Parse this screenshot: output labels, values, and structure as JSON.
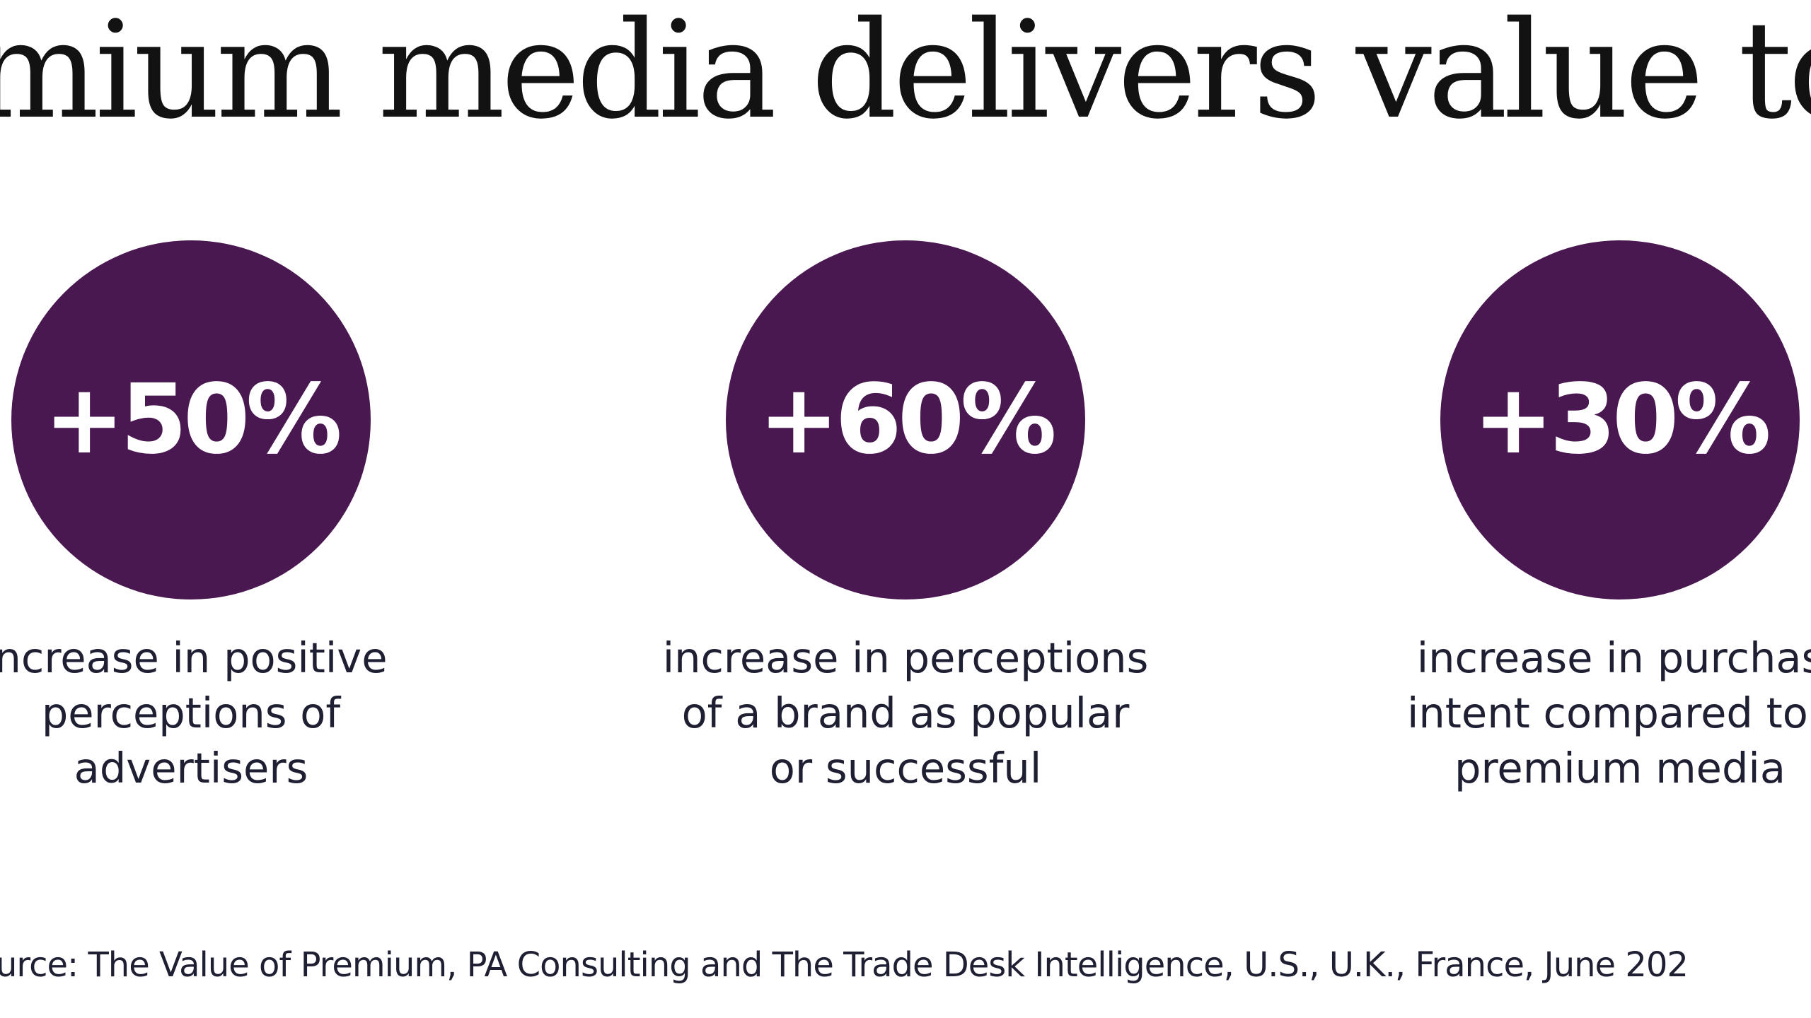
{
  "title": "mium media delivers value to adv",
  "stats": [
    {
      "value": "+50%",
      "lines": [
        "ncrease in positive",
        "perceptions of",
        "advertisers"
      ]
    },
    {
      "value": "+60%",
      "lines": [
        "increase in perceptions",
        "of a brand as popular",
        "or successful"
      ]
    },
    {
      "value": "+30%",
      "lines": [
        "increase in purchas",
        "intent compared to l",
        "premium media"
      ]
    }
  ],
  "source": "urce: The Value of Premium, PA Consulting and The Trade Desk Intelligence, U.S., U.K., France, June 202",
  "colors": {
    "circle": "#4a1851",
    "text": "#1f1f33",
    "title": "#121212",
    "background": "#ffffff"
  }
}
